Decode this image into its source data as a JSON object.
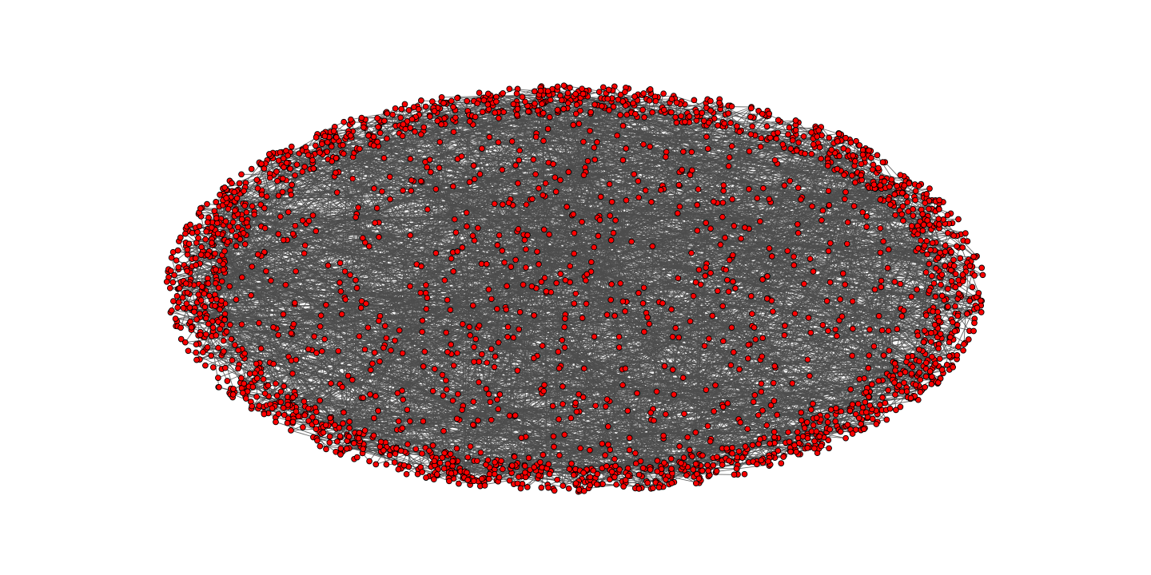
{
  "graph": {
    "type": "network",
    "layout": "elliptical-spring",
    "node_color": "#ff0000",
    "node_outline_color": "#000000",
    "edge_color": "#4d4d4d",
    "background_color": "#ffffff",
    "node_shape": "circle",
    "approx_node_count": 2600,
    "approx_edge_count": 2400,
    "labels_shown": false
  }
}
